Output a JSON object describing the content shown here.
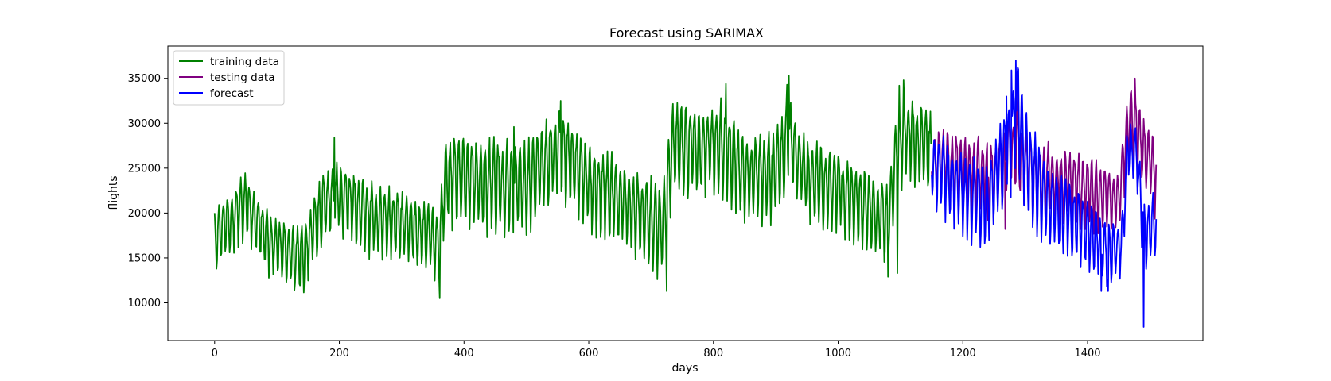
{
  "chart_data": {
    "type": "line",
    "title": "Forecast using SARIMAX",
    "xlabel": "days",
    "ylabel": "flights",
    "xlim": [
      -75,
      1585
    ],
    "ylim": [
      5800,
      38600
    ],
    "xticks": [
      0,
      200,
      400,
      600,
      800,
      1000,
      1200,
      1400
    ],
    "yticks": [
      10000,
      15000,
      20000,
      25000,
      30000,
      35000
    ],
    "grid": false,
    "legend": "top-left",
    "series": [
      {
        "name": "training data",
        "color": "#008000",
        "x_start": 0,
        "x_end": 1149,
        "anchors": [
          [
            0,
            17200
          ],
          [
            50,
            20800
          ],
          [
            90,
            16200
          ],
          [
            140,
            14600
          ],
          [
            175,
            20500
          ],
          [
            200,
            21500
          ],
          [
            250,
            19200
          ],
          [
            300,
            18400
          ],
          [
            340,
            17200
          ],
          [
            360,
            15800
          ],
          [
            370,
            23500
          ],
          [
            420,
            23000
          ],
          [
            500,
            22500
          ],
          [
            540,
            26000
          ],
          [
            560,
            26500
          ],
          [
            600,
            22800
          ],
          [
            650,
            21000
          ],
          [
            700,
            18600
          ],
          [
            720,
            17800
          ],
          [
            735,
            27000
          ],
          [
            780,
            26500
          ],
          [
            810,
            27500
          ],
          [
            850,
            23500
          ],
          [
            900,
            24000
          ],
          [
            920,
            27500
          ],
          [
            950,
            23600
          ],
          [
            1000,
            22200
          ],
          [
            1050,
            20000
          ],
          [
            1080,
            18500
          ],
          [
            1095,
            26500
          ],
          [
            1110,
            28500
          ],
          [
            1149,
            26500
          ]
        ],
        "amplitudes": [
          [
            0,
            3200
          ],
          [
            100,
            3000
          ],
          [
            200,
            3600
          ],
          [
            360,
            3300
          ],
          [
            380,
            4500
          ],
          [
            600,
            4400
          ],
          [
            730,
            4500
          ],
          [
            920,
            4200
          ],
          [
            1000,
            3700
          ],
          [
            1149,
            4000
          ]
        ],
        "peaks": [
          [
            921,
            35300
          ],
          [
            918,
            34300
          ],
          [
            820,
            34400
          ],
          [
            192,
            28400
          ],
          [
            480,
            29600
          ],
          [
            555,
            32500
          ],
          [
            1105,
            34800
          ],
          [
            1098,
            34200
          ]
        ],
        "troughs": [
          [
            361,
            10500
          ],
          [
            725,
            11300
          ],
          [
            128,
            11400
          ],
          [
            1080,
            12900
          ],
          [
            1095,
            13300
          ]
        ]
      },
      {
        "name": "testing data",
        "color": "#800080",
        "x_start": 1150,
        "x_end": 1510,
        "anchors": [
          [
            1150,
            25500
          ],
          [
            1200,
            24200
          ],
          [
            1250,
            23500
          ],
          [
            1275,
            27000
          ],
          [
            1290,
            26000
          ],
          [
            1320,
            23500
          ],
          [
            1380,
            22800
          ],
          [
            1420,
            21600
          ],
          [
            1450,
            21000
          ],
          [
            1468,
            30500
          ],
          [
            1485,
            27000
          ],
          [
            1510,
            24000
          ]
        ],
        "amplitudes": [
          [
            1150,
            3600
          ],
          [
            1300,
            3800
          ],
          [
            1450,
            3200
          ],
          [
            1470,
            3600
          ],
          [
            1510,
            4000
          ]
        ],
        "peaks": [
          [
            1476,
            35000
          ],
          [
            1470,
            33600
          ],
          [
            1286,
            34600
          ]
        ],
        "troughs": [
          [
            1268,
            18200
          ],
          [
            1445,
            18400
          ],
          [
            1240,
            19200
          ]
        ]
      },
      {
        "name": "forecast",
        "color": "#0000ff",
        "x_start": 1150,
        "x_end": 1510,
        "anchors": [
          [
            1150,
            25000
          ],
          [
            1200,
            22000
          ],
          [
            1240,
            20500
          ],
          [
            1270,
            26500
          ],
          [
            1290,
            30000
          ],
          [
            1300,
            25500
          ],
          [
            1330,
            21000
          ],
          [
            1380,
            18800
          ],
          [
            1430,
            15200
          ],
          [
            1455,
            16000
          ],
          [
            1465,
            27000
          ],
          [
            1480,
            25500
          ],
          [
            1490,
            17500
          ],
          [
            1510,
            18500
          ]
        ],
        "amplitudes": [
          [
            1150,
            3600
          ],
          [
            1250,
            4200
          ],
          [
            1290,
            5500
          ],
          [
            1350,
            4000
          ],
          [
            1450,
            3000
          ],
          [
            1510,
            3200
          ]
        ],
        "peaks": [
          [
            1285,
            37000
          ],
          [
            1289,
            36000
          ],
          [
            1278,
            35900
          ],
          [
            1270,
            33000
          ]
        ],
        "troughs": [
          [
            1490,
            7300
          ],
          [
            1422,
            11300
          ],
          [
            1433,
            11300
          ],
          [
            1228,
            16200
          ]
        ]
      }
    ]
  }
}
